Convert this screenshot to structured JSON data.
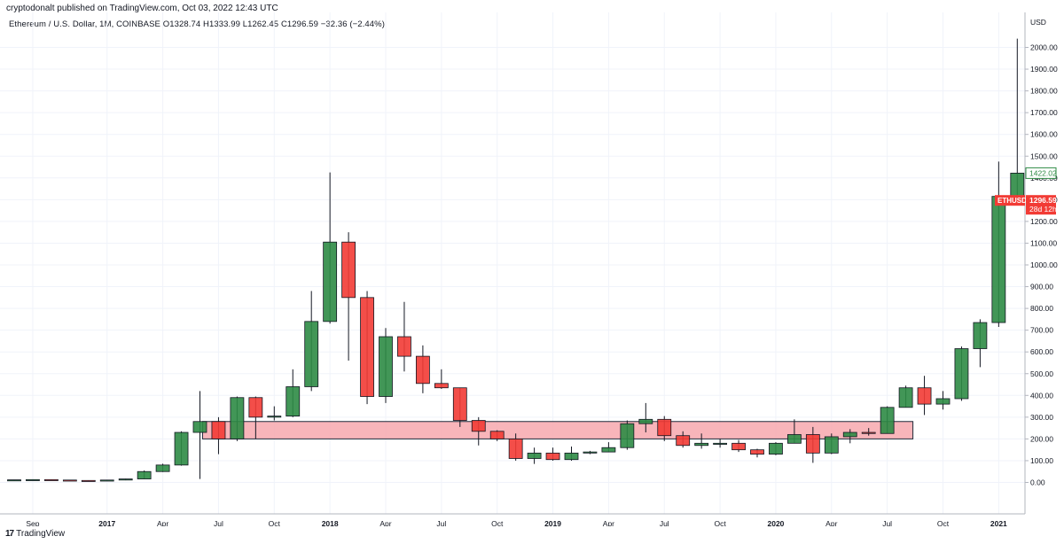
{
  "header": {
    "publish_note": "cryptodonalt published on TradingView.com, Oct 03, 2022 12:43 UTC",
    "legend": {
      "symbol": "Ethereum / U.S. Dollar, 1M, COINBASE",
      "open": "O1328.74",
      "high": "H1333.99",
      "low": "L1262.45",
      "close": "C1296.59",
      "change": "−32.36 (−2.44%)"
    }
  },
  "footer": {
    "logo_mark": "17",
    "brand": "TradingView"
  },
  "colors": {
    "up": "#2e8b45",
    "down": "#f23b35",
    "zone_fill": "#f7a8ae",
    "zone_stroke": "#1e2a3a",
    "grid": "#f0f3fa"
  },
  "chart_data": {
    "type": "candlestick",
    "symbol": "ETHUSD",
    "interval": "1M",
    "y_currency": "USD",
    "ylim": [
      -60,
      2100
    ],
    "y_ticks": [
      "0.00",
      "100.00",
      "200.00",
      "300.00",
      "400.00",
      "500.00",
      "600.00",
      "700.00",
      "800.00",
      "900.00",
      "1000.00",
      "1100.00",
      "1200.00",
      "1300.00",
      "1400.00",
      "1500.00",
      "1600.00",
      "1700.00",
      "1800.00",
      "1900.00",
      "2000.00"
    ],
    "y_tick_values": [
      0,
      100,
      200,
      300,
      400,
      500,
      600,
      700,
      800,
      900,
      1000,
      1100,
      1200,
      1300,
      1400,
      1500,
      1600,
      1700,
      1800,
      1900,
      2000
    ],
    "x_labels": [
      {
        "label": "Sep",
        "month": "2016-09",
        "bold": false
      },
      {
        "label": "2017",
        "month": "2017-01",
        "bold": true
      },
      {
        "label": "Apr",
        "month": "2017-04",
        "bold": false
      },
      {
        "label": "Jul",
        "month": "2017-07",
        "bold": false
      },
      {
        "label": "Oct",
        "month": "2017-10",
        "bold": false
      },
      {
        "label": "2018",
        "month": "2018-01",
        "bold": true
      },
      {
        "label": "Apr",
        "month": "2018-04",
        "bold": false
      },
      {
        "label": "Jul",
        "month": "2018-07",
        "bold": false
      },
      {
        "label": "Oct",
        "month": "2018-10",
        "bold": false
      },
      {
        "label": "2019",
        "month": "2019-01",
        "bold": true
      },
      {
        "label": "Apr",
        "month": "2019-04",
        "bold": false
      },
      {
        "label": "Jul",
        "month": "2019-07",
        "bold": false
      },
      {
        "label": "Oct",
        "month": "2019-10",
        "bold": false
      },
      {
        "label": "2020",
        "month": "2020-01",
        "bold": true
      },
      {
        "label": "Apr",
        "month": "2020-04",
        "bold": false
      },
      {
        "label": "Jul",
        "month": "2020-07",
        "bold": false
      },
      {
        "label": "Oct",
        "month": "2020-10",
        "bold": false
      },
      {
        "label": "2021",
        "month": "2021-01",
        "bold": true
      }
    ],
    "candles": [
      {
        "month": "2016-08",
        "o": 11,
        "h": 12,
        "l": 9,
        "c": 12
      },
      {
        "month": "2016-09",
        "o": 12,
        "h": 14,
        "l": 11,
        "c": 13
      },
      {
        "month": "2016-10",
        "o": 13,
        "h": 14,
        "l": 10,
        "c": 11
      },
      {
        "month": "2016-11",
        "o": 11,
        "h": 12,
        "l": 8,
        "c": 9
      },
      {
        "month": "2016-12",
        "o": 9,
        "h": 9,
        "l": 6,
        "c": 8
      },
      {
        "month": "2017-01",
        "o": 8,
        "h": 12,
        "l": 8,
        "c": 11
      },
      {
        "month": "2017-02",
        "o": 11,
        "h": 17,
        "l": 10,
        "c": 16
      },
      {
        "month": "2017-03",
        "o": 16,
        "h": 55,
        "l": 16,
        "c": 50
      },
      {
        "month": "2017-04",
        "o": 50,
        "h": 86,
        "l": 48,
        "c": 80
      },
      {
        "month": "2017-05",
        "o": 80,
        "h": 235,
        "l": 77,
        "c": 230
      },
      {
        "month": "2017-06",
        "o": 230,
        "h": 420,
        "l": 16,
        "c": 280
      },
      {
        "month": "2017-07",
        "o": 280,
        "h": 300,
        "l": 130,
        "c": 200
      },
      {
        "month": "2017-08",
        "o": 200,
        "h": 395,
        "l": 190,
        "c": 390
      },
      {
        "month": "2017-09",
        "o": 390,
        "h": 395,
        "l": 200,
        "c": 300
      },
      {
        "month": "2017-10",
        "o": 300,
        "h": 350,
        "l": 285,
        "c": 305
      },
      {
        "month": "2017-11",
        "o": 305,
        "h": 520,
        "l": 300,
        "c": 440
      },
      {
        "month": "2017-12",
        "o": 440,
        "h": 880,
        "l": 420,
        "c": 740
      },
      {
        "month": "2018-01",
        "o": 740,
        "h": 1425,
        "l": 730,
        "c": 1105
      },
      {
        "month": "2018-02",
        "o": 1105,
        "h": 1150,
        "l": 560,
        "c": 850
      },
      {
        "month": "2018-03",
        "o": 850,
        "h": 880,
        "l": 360,
        "c": 395
      },
      {
        "month": "2018-04",
        "o": 395,
        "h": 710,
        "l": 365,
        "c": 670
      },
      {
        "month": "2018-05",
        "o": 670,
        "h": 830,
        "l": 510,
        "c": 580
      },
      {
        "month": "2018-06",
        "o": 580,
        "h": 630,
        "l": 410,
        "c": 455
      },
      {
        "month": "2018-07",
        "o": 455,
        "h": 520,
        "l": 430,
        "c": 435
      },
      {
        "month": "2018-08",
        "o": 435,
        "h": 435,
        "l": 255,
        "c": 285
      },
      {
        "month": "2018-09",
        "o": 285,
        "h": 300,
        "l": 170,
        "c": 235
      },
      {
        "month": "2018-10",
        "o": 235,
        "h": 240,
        "l": 190,
        "c": 200
      },
      {
        "month": "2018-11",
        "o": 200,
        "h": 225,
        "l": 100,
        "c": 110
      },
      {
        "month": "2018-12",
        "o": 110,
        "h": 160,
        "l": 85,
        "c": 135
      },
      {
        "month": "2019-01",
        "o": 135,
        "h": 160,
        "l": 100,
        "c": 105
      },
      {
        "month": "2019-02",
        "o": 105,
        "h": 165,
        "l": 100,
        "c": 135
      },
      {
        "month": "2019-03",
        "o": 135,
        "h": 145,
        "l": 130,
        "c": 140
      },
      {
        "month": "2019-04",
        "o": 140,
        "h": 185,
        "l": 140,
        "c": 160
      },
      {
        "month": "2019-05",
        "o": 160,
        "h": 285,
        "l": 150,
        "c": 270
      },
      {
        "month": "2019-06",
        "o": 270,
        "h": 365,
        "l": 230,
        "c": 290
      },
      {
        "month": "2019-07",
        "o": 290,
        "h": 305,
        "l": 190,
        "c": 215
      },
      {
        "month": "2019-08",
        "o": 215,
        "h": 235,
        "l": 160,
        "c": 170
      },
      {
        "month": "2019-09",
        "o": 170,
        "h": 225,
        "l": 155,
        "c": 180
      },
      {
        "month": "2019-10",
        "o": 180,
        "h": 200,
        "l": 160,
        "c": 180
      },
      {
        "month": "2019-11",
        "o": 180,
        "h": 195,
        "l": 140,
        "c": 150
      },
      {
        "month": "2019-12",
        "o": 150,
        "h": 155,
        "l": 115,
        "c": 130
      },
      {
        "month": "2020-01",
        "o": 130,
        "h": 185,
        "l": 125,
        "c": 180
      },
      {
        "month": "2020-02",
        "o": 180,
        "h": 290,
        "l": 180,
        "c": 220
      },
      {
        "month": "2020-03",
        "o": 220,
        "h": 255,
        "l": 90,
        "c": 135
      },
      {
        "month": "2020-04",
        "o": 135,
        "h": 225,
        "l": 130,
        "c": 210
      },
      {
        "month": "2020-05",
        "o": 210,
        "h": 245,
        "l": 180,
        "c": 230
      },
      {
        "month": "2020-06",
        "o": 230,
        "h": 250,
        "l": 215,
        "c": 225
      },
      {
        "month": "2020-07",
        "o": 225,
        "h": 350,
        "l": 225,
        "c": 345
      },
      {
        "month": "2020-08",
        "o": 345,
        "h": 445,
        "l": 345,
        "c": 435
      },
      {
        "month": "2020-09",
        "o": 435,
        "h": 490,
        "l": 310,
        "c": 360
      },
      {
        "month": "2020-10",
        "o": 360,
        "h": 420,
        "l": 335,
        "c": 385
      },
      {
        "month": "2020-11",
        "o": 385,
        "h": 625,
        "l": 375,
        "c": 615
      },
      {
        "month": "2020-12",
        "o": 615,
        "h": 750,
        "l": 530,
        "c": 735
      },
      {
        "month": "2021-01",
        "o": 735,
        "h": 1475,
        "l": 715,
        "c": 1315
      },
      {
        "month": "2021-02",
        "o": 1315,
        "h": 2040,
        "l": 1300,
        "c": 1422
      }
    ],
    "zone": {
      "label": "",
      "y_low": 200,
      "y_high": 280,
      "month_start": "2017-07",
      "month_end": "2020-08"
    },
    "badges": [
      {
        "kind": "outline",
        "value": 1422.02,
        "text": "1422.02"
      },
      {
        "kind": "filled",
        "value": 1296.59,
        "text": "1296.59",
        "symbol": "ETHUSD",
        "countdown": "28d 12h"
      }
    ]
  }
}
